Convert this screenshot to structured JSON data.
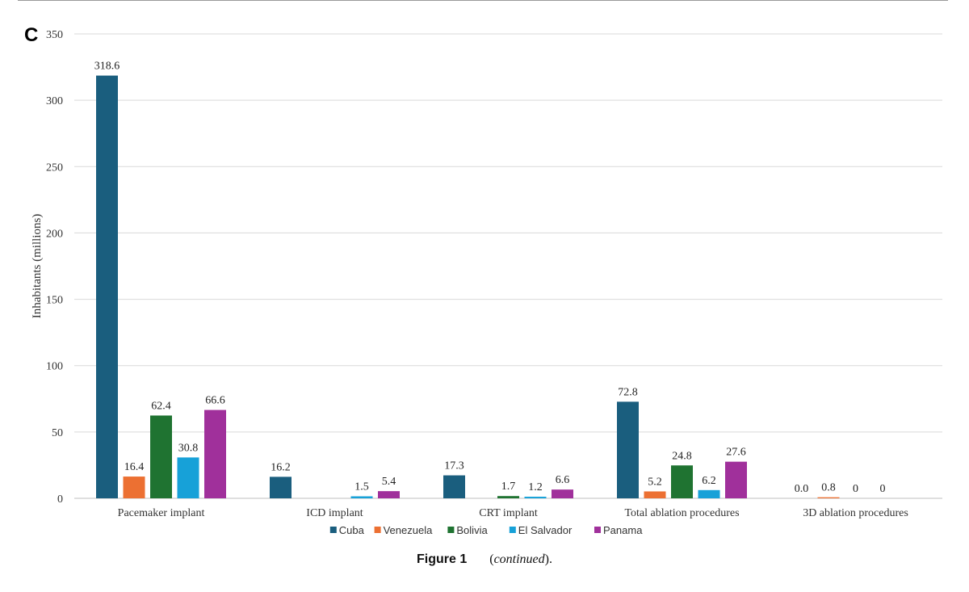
{
  "panel_label": "C",
  "caption": {
    "label": "Figure 1",
    "note_open": "(",
    "note": "continued",
    "note_close": ")."
  },
  "chart_data": {
    "type": "bar",
    "title": "",
    "xlabel": "",
    "ylabel": "Inhabitants (millions)",
    "ylim": [
      0,
      350
    ],
    "yticks": [
      0,
      50,
      100,
      150,
      200,
      250,
      300,
      350
    ],
    "grid": true,
    "legend_position": "bottom",
    "categories": [
      "Pacemaker implant",
      "ICD implant",
      "CRT implant",
      "Total ablation procedures",
      "3D ablation procedures"
    ],
    "series": [
      {
        "name": "Cuba",
        "color": "#1a5e7e",
        "values": [
          318.6,
          16.2,
          17.3,
          72.8,
          0.0
        ],
        "labels": [
          "318.6",
          "16.2",
          "17.3",
          "72.8",
          "0.0"
        ]
      },
      {
        "name": "Venezuela",
        "color": "#ec7032",
        "values": [
          16.4,
          null,
          null,
          5.2,
          0.8
        ],
        "labels": [
          "16.4",
          "",
          "",
          "5.2",
          "0.8"
        ]
      },
      {
        "name": "Bolivia",
        "color": "#1f7331",
        "values": [
          62.4,
          null,
          1.7,
          24.8,
          0
        ],
        "labels": [
          "62.4",
          "",
          "1.7",
          "24.8",
          "0"
        ]
      },
      {
        "name": "El Salvador",
        "color": "#17a1d8",
        "values": [
          30.8,
          1.5,
          1.2,
          6.2,
          0
        ],
        "labels": [
          "30.8",
          "1.5",
          "1.2",
          "6.2",
          "0"
        ]
      },
      {
        "name": "Panama",
        "color": "#a0309b",
        "values": [
          66.6,
          5.4,
          6.6,
          27.6,
          null
        ],
        "labels": [
          "66.6",
          "5.4",
          "6.6",
          "27.6",
          ""
        ]
      }
    ]
  }
}
